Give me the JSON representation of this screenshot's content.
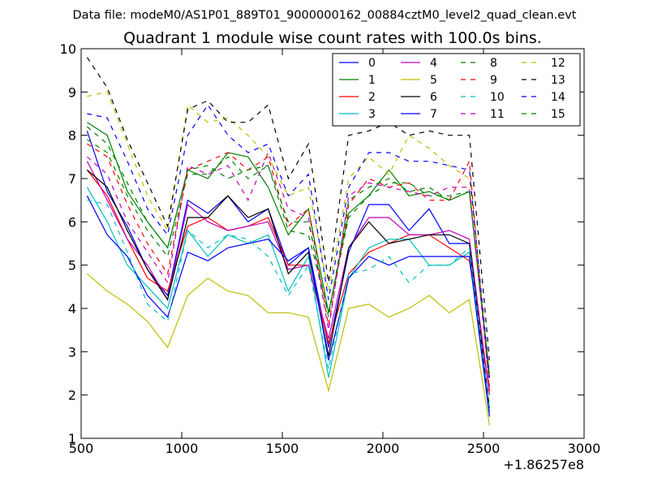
{
  "chart_data": {
    "type": "line",
    "suptitle": "Data file: modeM0/AS1P01_889T01_9000000162_00884cztM0_level2_quad_clean.evt",
    "title": "Quadrant 1 module wise count rates with 100.0s bins.",
    "xlabel": "",
    "ylabel": "",
    "x_offset_label": "+1.86257e8",
    "xlim": [
      500,
      3000
    ],
    "ylim": [
      1,
      10
    ],
    "xticks": [
      500,
      1000,
      1500,
      2000,
      2500,
      3000
    ],
    "yticks": [
      1,
      2,
      3,
      4,
      5,
      6,
      7,
      8,
      9,
      10
    ],
    "grid": false,
    "legend_position": "top-right",
    "legend_columns": 4,
    "x": [
      530,
      630,
      730,
      830,
      930,
      1030,
      1130,
      1230,
      1330,
      1430,
      1530,
      1630,
      1730,
      1830,
      1930,
      2030,
      2130,
      2230,
      2330,
      2430,
      2530
    ],
    "series": [
      {
        "name": "0",
        "color": "#0000ff",
        "dash": "solid",
        "values": [
          8.1,
          6.7,
          5.9,
          4.9,
          4.3,
          6.5,
          6.2,
          6.6,
          6.0,
          6.3,
          5.0,
          5.4,
          3.1,
          5.3,
          6.4,
          6.4,
          5.8,
          6.3,
          5.5,
          5.5,
          1.6
        ]
      },
      {
        "name": "1",
        "color": "#008000",
        "dash": "solid",
        "values": [
          8.3,
          8.0,
          6.7,
          6.0,
          5.4,
          7.2,
          7.0,
          7.6,
          7.5,
          6.8,
          5.7,
          6.3,
          3.9,
          6.2,
          6.6,
          7.2,
          6.6,
          6.7,
          6.5,
          6.7,
          2.4
        ]
      },
      {
        "name": "2",
        "color": "#ff0000",
        "dash": "solid",
        "values": [
          7.2,
          6.6,
          5.6,
          4.7,
          4.4,
          5.9,
          6.1,
          5.8,
          5.9,
          6.1,
          5.0,
          5.0,
          3.2,
          4.8,
          5.3,
          5.5,
          5.7,
          5.7,
          5.4,
          5.1,
          2.1
        ]
      },
      {
        "name": "3",
        "color": "#00bfbf",
        "dash": "solid",
        "values": [
          6.8,
          6.0,
          5.0,
          4.5,
          4.0,
          5.8,
          5.2,
          5.7,
          5.5,
          5.7,
          4.4,
          5.2,
          2.4,
          4.7,
          5.4,
          5.6,
          5.6,
          5.0,
          5.0,
          5.3,
          1.6
        ]
      },
      {
        "name": "4",
        "color": "#bf00bf",
        "dash": "solid",
        "values": [
          7.4,
          6.5,
          5.6,
          5.0,
          4.2,
          6.4,
          6.0,
          5.8,
          5.9,
          6.0,
          4.9,
          5.0,
          3.3,
          5.4,
          6.1,
          6.1,
          5.7,
          5.7,
          5.8,
          5.6,
          2.0
        ]
      },
      {
        "name": "5",
        "color": "#bfbf00",
        "dash": "solid",
        "values": [
          4.8,
          4.4,
          4.1,
          3.7,
          3.1,
          4.3,
          4.7,
          4.4,
          4.3,
          3.9,
          3.9,
          3.8,
          2.1,
          4.0,
          4.1,
          3.8,
          4.0,
          4.3,
          3.9,
          4.2,
          1.3
        ]
      },
      {
        "name": "6",
        "color": "#000000",
        "dash": "solid",
        "values": [
          7.2,
          6.8,
          5.8,
          4.9,
          4.2,
          6.1,
          6.1,
          6.6,
          6.1,
          6.3,
          4.8,
          5.3,
          2.9,
          5.4,
          6.0,
          5.5,
          5.6,
          5.7,
          5.7,
          5.5,
          1.7
        ]
      },
      {
        "name": "7",
        "color": "#0000ff",
        "dash": "solid",
        "values": [
          6.6,
          5.7,
          5.2,
          4.3,
          3.8,
          5.3,
          5.1,
          5.4,
          5.5,
          5.6,
          5.1,
          5.4,
          2.8,
          4.7,
          5.2,
          5.0,
          5.2,
          5.2,
          5.2,
          5.2,
          1.5
        ]
      },
      {
        "name": "8",
        "color": "#008000",
        "dash": "dashed",
        "values": [
          7.9,
          7.6,
          6.6,
          5.8,
          5.2,
          7.1,
          7.1,
          7.5,
          7.0,
          7.3,
          5.8,
          5.7,
          3.9,
          6.1,
          6.6,
          6.9,
          6.9,
          6.6,
          6.6,
          6.7,
          2.5
        ]
      },
      {
        "name": "9",
        "color": "#ff0000",
        "dash": "dashed",
        "values": [
          7.8,
          7.5,
          6.4,
          5.5,
          4.8,
          7.2,
          7.4,
          7.6,
          7.2,
          7.5,
          5.9,
          6.3,
          3.6,
          6.4,
          7.0,
          6.8,
          6.9,
          6.5,
          6.5,
          7.4,
          2.1
        ]
      },
      {
        "name": "10",
        "color": "#00bfbf",
        "dash": "dashed",
        "values": [
          6.5,
          6.4,
          5.3,
          4.1,
          3.7,
          5.8,
          5.4,
          5.7,
          5.6,
          5.2,
          4.3,
          5.0,
          2.6,
          4.8,
          4.9,
          5.2,
          4.6,
          5.0,
          5.0,
          5.4,
          1.7
        ]
      },
      {
        "name": "11",
        "color": "#bf00bf",
        "dash": "dashed",
        "values": [
          7.5,
          7.1,
          6.0,
          5.3,
          4.6,
          7.3,
          7.1,
          7.3,
          6.5,
          7.6,
          6.3,
          6.1,
          3.5,
          6.6,
          6.9,
          6.8,
          6.7,
          6.6,
          6.8,
          6.8,
          2.2
        ]
      },
      {
        "name": "12",
        "color": "#bfbf00",
        "dash": "dashed",
        "values": [
          8.9,
          9.0,
          7.8,
          6.6,
          5.8,
          8.7,
          8.3,
          8.4,
          8.0,
          7.5,
          6.6,
          6.8,
          4.4,
          7.0,
          7.5,
          7.1,
          8.0,
          7.7,
          7.3,
          7.0,
          2.5
        ]
      },
      {
        "name": "13",
        "color": "#000000",
        "dash": "dashed",
        "values": [
          9.8,
          9.1,
          7.9,
          6.9,
          5.9,
          8.6,
          8.8,
          8.3,
          8.3,
          8.7,
          7.0,
          7.8,
          4.6,
          8.0,
          8.1,
          8.3,
          8.0,
          8.1,
          8.0,
          8.0,
          2.8
        ]
      },
      {
        "name": "14",
        "color": "#0000ff",
        "dash": "dashed",
        "values": [
          8.5,
          8.4,
          7.4,
          6.3,
          5.7,
          8.0,
          8.7,
          8.0,
          7.6,
          7.8,
          6.6,
          7.1,
          4.2,
          6.8,
          7.6,
          7.6,
          7.4,
          7.4,
          7.3,
          7.2,
          2.4
        ]
      },
      {
        "name": "15",
        "color": "#008000",
        "dash": "dashed",
        "values": [
          8.2,
          7.8,
          6.9,
          6.0,
          5.4,
          7.2,
          7.3,
          7.0,
          7.2,
          7.3,
          6.0,
          6.0,
          3.8,
          6.5,
          6.8,
          7.0,
          6.7,
          6.8,
          6.5,
          6.7,
          2.4
        ]
      }
    ]
  }
}
